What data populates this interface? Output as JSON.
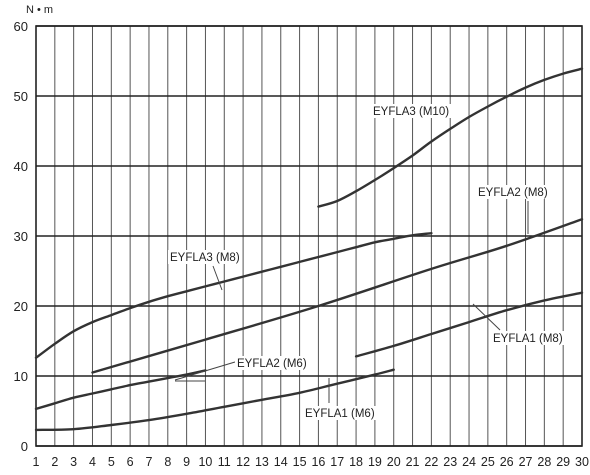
{
  "chart_data": {
    "type": "line",
    "title": "",
    "ylabel": "N • m",
    "xlabel": "",
    "xlim": [
      1,
      30
    ],
    "ylim": [
      0,
      60
    ],
    "x_ticks": [
      1,
      2,
      3,
      4,
      5,
      6,
      7,
      8,
      9,
      10,
      11,
      12,
      13,
      14,
      15,
      16,
      17,
      18,
      19,
      20,
      21,
      22,
      23,
      24,
      25,
      26,
      27,
      28,
      29,
      30
    ],
    "y_ticks": [
      0,
      10,
      20,
      30,
      40,
      50,
      60
    ],
    "grid": true,
    "line_color": "#333333",
    "series": [
      {
        "name": "EYFLA3 (M10)",
        "points": [
          [
            16,
            34.2
          ],
          [
            17,
            35.0
          ],
          [
            18,
            36.4
          ],
          [
            19,
            38.0
          ],
          [
            20,
            39.7
          ],
          [
            21,
            41.5
          ],
          [
            22,
            43.5
          ],
          [
            23,
            45.3
          ],
          [
            24,
            47.0
          ],
          [
            25,
            48.5
          ],
          [
            26,
            49.9
          ],
          [
            27,
            51.2
          ],
          [
            28,
            52.3
          ],
          [
            29,
            53.2
          ],
          [
            30,
            53.9
          ]
        ]
      },
      {
        "name": "EYFLA3 (M8)",
        "points": [
          [
            1,
            12.6
          ],
          [
            2,
            14.6
          ],
          [
            3,
            16.4
          ],
          [
            4,
            17.7
          ],
          [
            5,
            18.7
          ],
          [
            6,
            19.7
          ],
          [
            7,
            20.6
          ],
          [
            8,
            21.4
          ],
          [
            9,
            22.1
          ],
          [
            10,
            22.8
          ],
          [
            11,
            23.5
          ],
          [
            12,
            24.2
          ],
          [
            13,
            24.9
          ],
          [
            14,
            25.6
          ],
          [
            15,
            26.3
          ],
          [
            16,
            27.0
          ],
          [
            17,
            27.7
          ],
          [
            18,
            28.4
          ],
          [
            19,
            29.1
          ],
          [
            20,
            29.6
          ],
          [
            21,
            30.1
          ],
          [
            22,
            30.4
          ]
        ]
      },
      {
        "name": "EYFLA2 (M8)",
        "points": [
          [
            4,
            10.5
          ],
          [
            10,
            15.2
          ],
          [
            16,
            20.0
          ],
          [
            22,
            25.3
          ],
          [
            26,
            28.6
          ],
          [
            30,
            32.4
          ]
        ]
      },
      {
        "name": "EYFLA2 (M6)",
        "points": [
          [
            1,
            5.3
          ],
          [
            2,
            6.1
          ],
          [
            3,
            6.9
          ],
          [
            4,
            7.5
          ],
          [
            5,
            8.1
          ],
          [
            6,
            8.7
          ],
          [
            7,
            9.2
          ],
          [
            8,
            9.7
          ],
          [
            9,
            10.2
          ],
          [
            10,
            10.8
          ]
        ]
      },
      {
        "name": "EYFLA1 (M8)",
        "points": [
          [
            18,
            12.8
          ],
          [
            20,
            14.3
          ],
          [
            22,
            16.0
          ],
          [
            24,
            17.7
          ],
          [
            26,
            19.4
          ],
          [
            28,
            20.8
          ],
          [
            30,
            21.9
          ]
        ]
      },
      {
        "name": "EYFLA1 (M6)",
        "points": [
          [
            1,
            2.3
          ],
          [
            3,
            2.4
          ],
          [
            5,
            3.0
          ],
          [
            7,
            3.7
          ],
          [
            9,
            4.6
          ],
          [
            11,
            5.6
          ],
          [
            13,
            6.6
          ],
          [
            15,
            7.6
          ],
          [
            17,
            8.9
          ],
          [
            19,
            10.2
          ],
          [
            20,
            10.9
          ]
        ]
      }
    ],
    "annotations": [
      {
        "text": "EYFLA3 (M10)",
        "series": "EYFLA3 (M10)"
      },
      {
        "text": "EYFLA3 (M8)",
        "series": "EYFLA3 (M8)"
      },
      {
        "text": "EYFLA2 (M8)",
        "series": "EYFLA2 (M8)"
      },
      {
        "text": "EYFLA2 (M6)",
        "series": "EYFLA2 (M6)"
      },
      {
        "text": "EYFLA1 (M8)",
        "series": "EYFLA1 (M8)"
      },
      {
        "text": "EYFLA1 (M6)",
        "series": "EYFLA1 (M6)"
      }
    ]
  }
}
